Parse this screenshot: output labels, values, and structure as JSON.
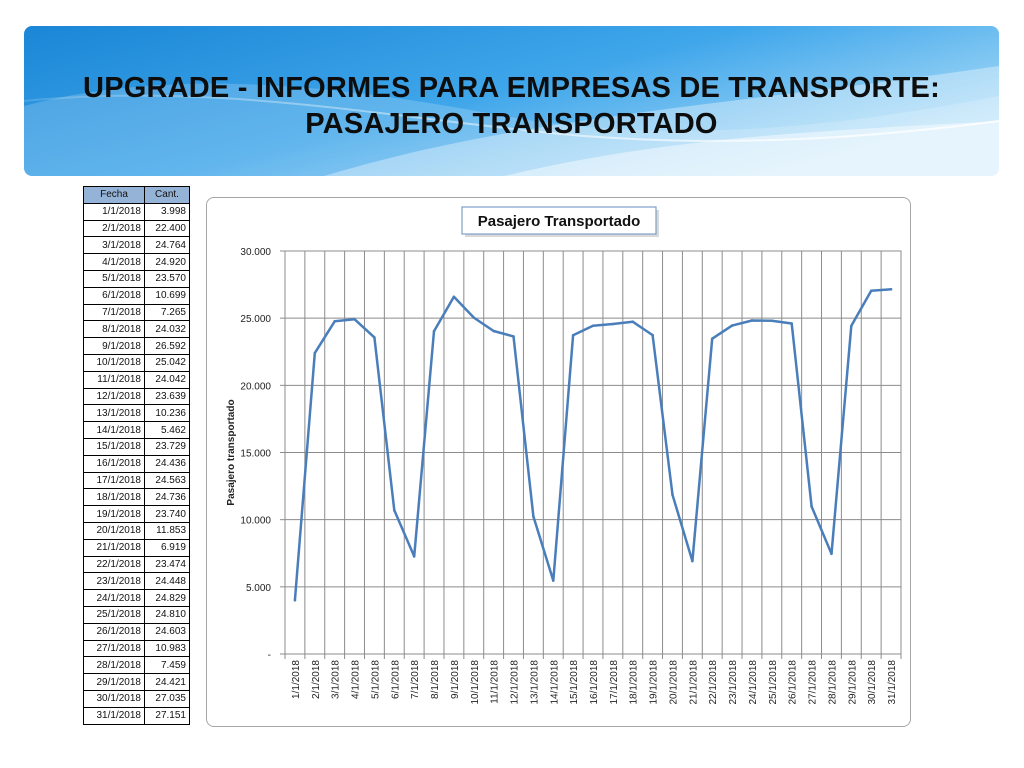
{
  "header": {
    "title_line1": "UPGRADE - INFORMES PARA EMPRESAS DE TRANSPORTE:",
    "title_line2": "PASAJERO TRANSPORTADO"
  },
  "colors": {
    "banner_start": "#1e88d8",
    "banner_end": "#bfe4fa",
    "line": "#4a7ebb",
    "table_header": "#95b3d7"
  },
  "table": {
    "headers": [
      "Fecha",
      "Cant."
    ],
    "rows": [
      [
        "1/1/2018",
        "3.998"
      ],
      [
        "2/1/2018",
        "22.400"
      ],
      [
        "3/1/2018",
        "24.764"
      ],
      [
        "4/1/2018",
        "24.920"
      ],
      [
        "5/1/2018",
        "23.570"
      ],
      [
        "6/1/2018",
        "10.699"
      ],
      [
        "7/1/2018",
        "7.265"
      ],
      [
        "8/1/2018",
        "24.032"
      ],
      [
        "9/1/2018",
        "26.592"
      ],
      [
        "10/1/2018",
        "25.042"
      ],
      [
        "11/1/2018",
        "24.042"
      ],
      [
        "12/1/2018",
        "23.639"
      ],
      [
        "13/1/2018",
        "10.236"
      ],
      [
        "14/1/2018",
        "5.462"
      ],
      [
        "15/1/2018",
        "23.729"
      ],
      [
        "16/1/2018",
        "24.436"
      ],
      [
        "17/1/2018",
        "24.563"
      ],
      [
        "18/1/2018",
        "24.736"
      ],
      [
        "19/1/2018",
        "23.740"
      ],
      [
        "20/1/2018",
        "11.853"
      ],
      [
        "21/1/2018",
        "6.919"
      ],
      [
        "22/1/2018",
        "23.474"
      ],
      [
        "23/1/2018",
        "24.448"
      ],
      [
        "24/1/2018",
        "24.829"
      ],
      [
        "25/1/2018",
        "24.810"
      ],
      [
        "26/1/2018",
        "24.603"
      ],
      [
        "27/1/2018",
        "10.983"
      ],
      [
        "28/1/2018",
        "7.459"
      ],
      [
        "29/1/2018",
        "24.421"
      ],
      [
        "30/1/2018",
        "27.035"
      ],
      [
        "31/1/2018",
        "27.151"
      ]
    ]
  },
  "chart_data": {
    "type": "line",
    "title": "Pasajero Transportado",
    "ylabel": "Pasajero transportado",
    "xlabel": "",
    "ylim": [
      0,
      30000
    ],
    "yticks": [
      0,
      5000,
      10000,
      15000,
      20000,
      25000,
      30000
    ],
    "ytick_labels": [
      "-",
      "5.000",
      "10.000",
      "15.000",
      "20.000",
      "25.000",
      "30.000"
    ],
    "grid": true,
    "legend": "none",
    "categories": [
      "1/1/2018",
      "2/1/2018",
      "3/1/2018",
      "4/1/2018",
      "5/1/2018",
      "6/1/2018",
      "7/1/2018",
      "8/1/2018",
      "9/1/2018",
      "10/1/2018",
      "11/1/2018",
      "12/1/2018",
      "13/1/2018",
      "14/1/2018",
      "15/1/2018",
      "16/1/2018",
      "17/1/2018",
      "18/1/2018",
      "19/1/2018",
      "20/1/2018",
      "21/1/2018",
      "22/1/2018",
      "23/1/2018",
      "24/1/2018",
      "25/1/2018",
      "26/1/2018",
      "27/1/2018",
      "28/1/2018",
      "29/1/2018",
      "30/1/2018",
      "31/1/2018"
    ],
    "series": [
      {
        "values": [
          3998,
          22400,
          24764,
          24920,
          23570,
          10699,
          7265,
          24032,
          26592,
          25042,
          24042,
          23639,
          10236,
          5462,
          23729,
          24436,
          24563,
          24736,
          23740,
          11853,
          6919,
          23474,
          24448,
          24829,
          24810,
          24603,
          10983,
          7459,
          24421,
          27035,
          27151
        ]
      }
    ]
  }
}
